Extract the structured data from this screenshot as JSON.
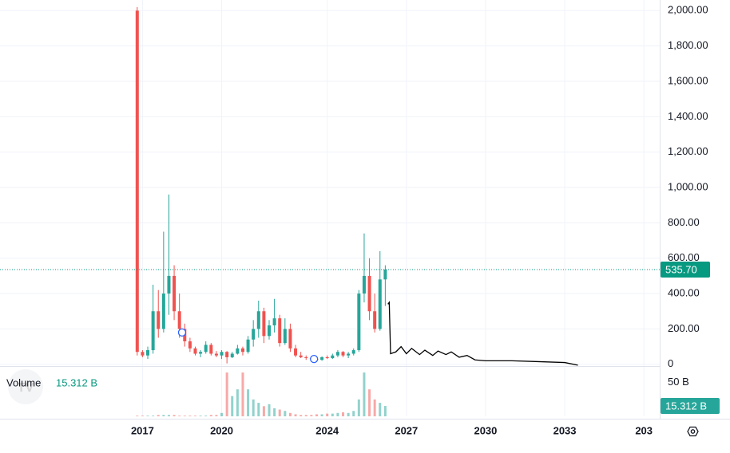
{
  "chart_data": {
    "type": "candlestick",
    "candles": {
      "x": [
        2016.8,
        2017.0,
        2017.2,
        2017.4,
        2017.6,
        2017.8,
        2018.0,
        2018.2,
        2018.4,
        2018.6,
        2018.8,
        2019.0,
        2019.2,
        2019.4,
        2019.6,
        2019.8,
        2020.0,
        2020.2,
        2020.4,
        2020.6,
        2020.8,
        2021.0,
        2021.2,
        2021.4,
        2021.6,
        2021.8,
        2022.0,
        2022.2,
        2022.4,
        2022.6,
        2022.8,
        2023.0,
        2023.2,
        2023.4,
        2023.6,
        2023.8,
        2024.0,
        2024.2,
        2024.4,
        2024.6,
        2024.8,
        2025.0,
        2025.2,
        2025.4,
        2025.6,
        2025.8,
        2026.0,
        2026.2
      ],
      "open": [
        2000,
        70,
        50,
        80,
        300,
        200,
        400,
        500,
        300,
        200,
        130,
        90,
        60,
        70,
        110,
        60,
        50,
        70,
        40,
        60,
        90,
        70,
        140,
        200,
        300,
        160,
        220,
        260,
        120,
        200,
        90,
        50,
        40,
        35,
        30,
        25,
        40,
        35,
        50,
        70,
        50,
        60,
        80,
        400,
        500,
        300,
        200,
        480
      ],
      "high": [
        2020,
        80,
        100,
        450,
        420,
        750,
        960,
        560,
        400,
        230,
        150,
        100,
        80,
        130,
        120,
        75,
        80,
        75,
        70,
        110,
        100,
        160,
        250,
        360,
        320,
        250,
        370,
        280,
        260,
        230,
        110,
        70,
        50,
        45,
        40,
        45,
        50,
        60,
        80,
        75,
        70,
        90,
        420,
        740,
        600,
        400,
        640,
        560
      ],
      "low": [
        50,
        40,
        30,
        60,
        150,
        180,
        280,
        250,
        150,
        100,
        70,
        50,
        40,
        60,
        50,
        40,
        30,
        5,
        35,
        55,
        50,
        60,
        100,
        150,
        120,
        140,
        180,
        100,
        110,
        70,
        40,
        35,
        25,
        25,
        20,
        20,
        30,
        30,
        40,
        40,
        35,
        50,
        70,
        350,
        250,
        180,
        190,
        330
      ],
      "close": [
        70,
        50,
        80,
        300,
        200,
        400,
        500,
        300,
        200,
        130,
        90,
        60,
        70,
        110,
        60,
        50,
        70,
        40,
        60,
        90,
        70,
        140,
        200,
        300,
        160,
        220,
        260,
        120,
        200,
        90,
        50,
        40,
        35,
        30,
        25,
        40,
        35,
        50,
        70,
        50,
        60,
        80,
        400,
        500,
        300,
        200,
        480,
        535.7
      ],
      "volume": [
        1,
        1,
        1,
        1,
        2,
        2,
        2,
        2,
        1,
        1,
        1,
        1,
        1,
        1,
        2,
        2,
        5,
        65,
        30,
        40,
        65,
        40,
        25,
        20,
        15,
        18,
        12,
        10,
        8,
        5,
        3,
        2,
        2,
        2,
        3,
        3,
        4,
        4,
        5,
        6,
        5,
        8,
        25,
        65,
        40,
        25,
        20,
        15.312
      ]
    },
    "up_color": "#26a69a",
    "down_color": "#ef5350",
    "projection": {
      "color": "#000000",
      "x": [
        2026.3,
        2026.35,
        2026.4,
        2026.6,
        2026.8,
        2027.0,
        2027.2,
        2027.5,
        2027.7,
        2028.0,
        2028.2,
        2028.5,
        2028.7,
        2029.0,
        2029.3,
        2029.6,
        2030.0,
        2031.0,
        2032.0,
        2033.0,
        2033.5
      ],
      "values": [
        340,
        350,
        60,
        70,
        100,
        60,
        90,
        55,
        80,
        50,
        75,
        55,
        70,
        40,
        50,
        25,
        20,
        20,
        15,
        10,
        -5
      ]
    },
    "markers": {
      "color": "#2962ff",
      "x": [
        2018.5,
        2023.5
      ],
      "values": [
        180,
        30
      ]
    },
    "xlim": [
      2011.6,
      2036.6
    ],
    "xticks": [
      2017,
      2020,
      2024,
      2027,
      2030,
      2033,
      {
        "value": 2036,
        "label": "203"
      }
    ],
    "ylim": [
      -10,
      2060
    ],
    "yticks": [
      0,
      {
        "value": 200,
        "label": "200.00"
      },
      {
        "value": 400,
        "label": "400.00"
      },
      {
        "value": 600,
        "label": "600.00"
      },
      {
        "value": 800,
        "label": "800.00"
      },
      {
        "value": 1000,
        "label": "1,000.00"
      },
      {
        "value": 1200,
        "label": "1,200.00"
      },
      {
        "value": 1400,
        "label": "1,400.00"
      },
      {
        "value": 1600,
        "label": "1,600.00"
      },
      {
        "value": 1800,
        "label": "1,800.00"
      },
      {
        "value": 2000,
        "label": "2,000.00"
      }
    ],
    "last_price": {
      "value": 535.7,
      "label": "535.70",
      "color": "#089981"
    },
    "volume_title": "Volume",
    "volume_last": {
      "value": 15.312,
      "label": "15.312 B"
    },
    "volume_ylim": [
      0,
      71
    ],
    "volume_yticks": [
      {
        "value": 50,
        "label": "50 B"
      }
    ],
    "grid": true
  }
}
